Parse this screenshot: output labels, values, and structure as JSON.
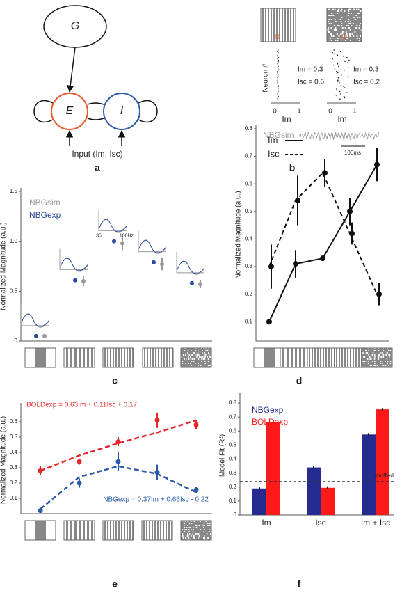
{
  "panel_labels": [
    "a",
    "b",
    "c",
    "d",
    "e",
    "f"
  ],
  "diagram": {
    "nodes": [
      "G",
      "E",
      "I"
    ],
    "input_label": "Input (Im, Isc)"
  },
  "raster": {
    "y_label": "Neuron #",
    "x_label": "Im",
    "x_ticks": [
      "0",
      "1"
    ],
    "annotations": [
      [
        "Im = 0.3",
        "Isc = 0.6"
      ],
      [
        "Im = 0.3",
        "Isc = 0.2"
      ]
    ],
    "signal_label": "NBGsim",
    "scale_bar": "100ms"
  },
  "chart_data": [
    {
      "type": "scatter",
      "y_label": "Normalized Magnitude (a.u.)",
      "ylim": [
        0,
        1.5
      ],
      "yticks": [
        0,
        0.5,
        {
          "value": 1,
          "label": "1.0"
        },
        1.5
      ],
      "inset_xticks": [
        "35",
        "100Hz"
      ],
      "series": [
        {
          "name": "NBGsim",
          "color": "#999999",
          "values": [
            0.05,
            0.6,
            0.98,
            0.77,
            0.57
          ],
          "errors": [
            0.01,
            0.05,
            0.07,
            0.06,
            0.04
          ]
        },
        {
          "name": "NBGexp",
          "color": "#2a4a9e",
          "values": [
            0.05,
            0.61,
            1.0,
            0.79,
            0.58
          ]
        }
      ]
    },
    {
      "type": "line",
      "y_label": "Normalized Magnitude (a.u.)",
      "ylim": [
        0.03,
        0.8
      ],
      "yticks": [
        0.1,
        0.2,
        0.3,
        0.4,
        0.5,
        0.6,
        0.7,
        0.8
      ],
      "series": [
        {
          "name": "Im",
          "color": "#111111",
          "dash": false,
          "values": [
            0.1,
            0.31,
            0.33,
            0.5,
            0.67
          ],
          "errors": [
            0.005,
            0.05,
            0.01,
            0.05,
            0.06
          ]
        },
        {
          "name": "Isc",
          "color": "#111111",
          "dash": true,
          "values": [
            0.3,
            0.54,
            0.64,
            0.42,
            0.2
          ],
          "errors": [
            0.08,
            0.09,
            0.05,
            0.04,
            0.04
          ]
        }
      ]
    },
    {
      "type": "scatter_fit",
      "y_label": "Normalized Magnitude (a.u.)",
      "ylim": [
        0,
        0.7
      ],
      "yticks": [
        0.1,
        0.2,
        0.3,
        0.4,
        0.5,
        0.6
      ],
      "series": [
        {
          "equation": "BOLDexp = 0.63Im + 0.11Isc + 0.17",
          "color": "#e8262a",
          "values": [
            0.28,
            0.34,
            0.47,
            0.61,
            0.58
          ],
          "errors": [
            0.03,
            0.02,
            0.03,
            0.05,
            0.03
          ],
          "fit": [
            0.28,
            0.38,
            0.46,
            0.53,
            0.61
          ]
        },
        {
          "equation": "NBGexp = 0.37Im + 0.66Isc - 0.22",
          "color": "#2a5aa8",
          "values": [
            0.02,
            0.2,
            0.34,
            0.27,
            0.155
          ],
          "errors": [
            0.01,
            0.03,
            0.06,
            0.05,
            0.02
          ],
          "fit": [
            0.03,
            0.24,
            0.31,
            0.26,
            0.14
          ]
        }
      ]
    },
    {
      "type": "bar",
      "y_label": "Model Fit (R²)",
      "categories": [
        "Im",
        "Isc",
        "Im + Isc"
      ],
      "ylim": [
        0,
        0.85
      ],
      "yticks": [
        0,
        0.1,
        0.2,
        0.3,
        0.4,
        0.5,
        0.6,
        0.7,
        0.8
      ],
      "baseline": 0.24,
      "baseline_label": "shuffled",
      "series": [
        {
          "name": "NBGexp",
          "color": "#262c8f",
          "values": [
            0.19,
            0.34,
            0.575
          ],
          "errors": [
            0.008,
            0.01,
            0.01
          ]
        },
        {
          "name": "BOLDexp",
          "color": "#ff1a1a",
          "values": [
            0.665,
            0.195,
            0.755
          ],
          "errors": [
            0.01,
            0.01,
            0.01
          ]
        }
      ]
    }
  ]
}
